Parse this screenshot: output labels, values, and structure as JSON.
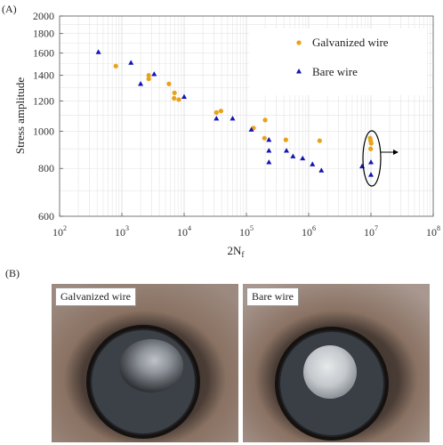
{
  "panel_a_label": "(A)",
  "panel_b_label": "(B)",
  "chart_data": {
    "type": "scatter",
    "ylabel": "Stress amplitude",
    "xlabel_main": "2N",
    "xlabel_sub": "f",
    "xscale": "log",
    "yscale": "log",
    "xlim": [
      100,
      100000000
    ],
    "ylim": [
      600,
      2000
    ],
    "x_ticks": [
      {
        "base": "10",
        "exp": "2"
      },
      {
        "base": "10",
        "exp": "3"
      },
      {
        "base": "10",
        "exp": "4"
      },
      {
        "base": "10",
        "exp": "5"
      },
      {
        "base": "10",
        "exp": "6"
      },
      {
        "base": "10",
        "exp": "7"
      },
      {
        "base": "10",
        "exp": "8"
      }
    ],
    "y_ticks": [
      "600",
      "800",
      "1000",
      "1200",
      "1400",
      "1600",
      "1800",
      "2000"
    ],
    "grid": true,
    "legend_position": "top-right",
    "series": [
      {
        "name": "Galvanized wire",
        "marker": "circle",
        "color": "#E8A317",
        "points": [
          [
            800,
            1480
          ],
          [
            2700,
            1400
          ],
          [
            2700,
            1370
          ],
          [
            5700,
            1330
          ],
          [
            7000,
            1260
          ],
          [
            6900,
            1220
          ],
          [
            8200,
            1210
          ],
          [
            33000,
            1120
          ],
          [
            39000,
            1130
          ],
          [
            130000,
            1020
          ],
          [
            200000,
            1070
          ],
          [
            195000,
            960
          ],
          [
            430000,
            950
          ],
          [
            1500000,
            945
          ],
          [
            9700000,
            960
          ],
          [
            9900000,
            945
          ],
          [
            10100000,
            930
          ],
          [
            9900000,
            900
          ]
        ]
      },
      {
        "name": "Bare wire",
        "marker": "triangle",
        "color": "#1414B4",
        "points": [
          [
            420,
            1610
          ],
          [
            1400,
            1510
          ],
          [
            2000,
            1330
          ],
          [
            3300,
            1410
          ],
          [
            10000,
            1230
          ],
          [
            33000,
            1080
          ],
          [
            60000,
            1080
          ],
          [
            120000,
            1010
          ],
          [
            230000,
            950
          ],
          [
            230000,
            890
          ],
          [
            230000,
            830
          ],
          [
            440000,
            890
          ],
          [
            560000,
            860
          ],
          [
            800000,
            850
          ],
          [
            1150000,
            820
          ],
          [
            1600000,
            790
          ],
          [
            7200000,
            810
          ],
          [
            10000000,
            830
          ],
          [
            10000000,
            770
          ]
        ]
      }
    ],
    "annotation": "runout-ellipse-with-arrow"
  },
  "photos": [
    {
      "caption": "Galvanized wire"
    },
    {
      "caption": "Bare wire"
    }
  ]
}
